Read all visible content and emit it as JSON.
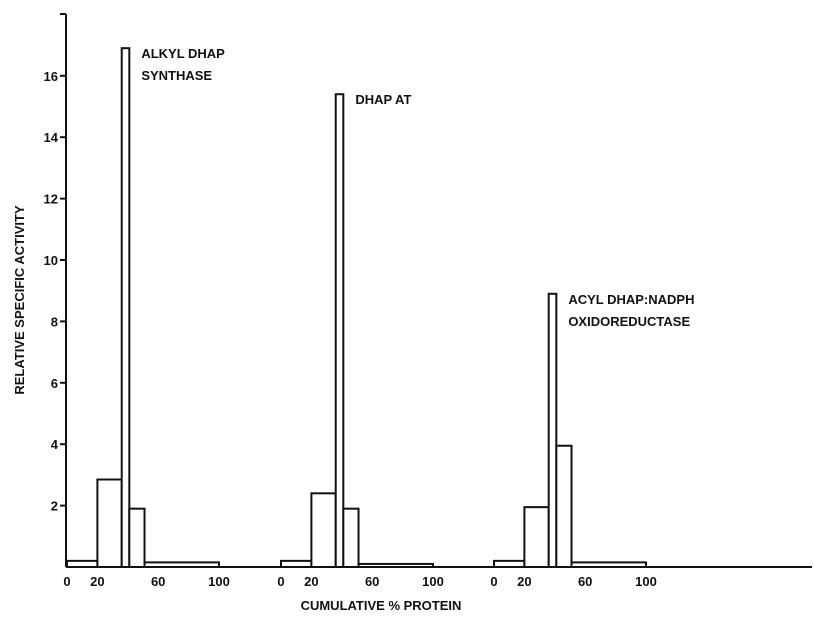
{
  "chart_data": {
    "type": "bar",
    "ylabel": "RELATIVE SPECIFIC ACTIVITY",
    "xlabel": "CUMULATIVE % PROTEIN",
    "yticks": [
      2,
      4,
      6,
      8,
      10,
      12,
      14,
      16
    ],
    "ylim": [
      0,
      18
    ],
    "xlim": [
      0,
      100
    ],
    "x_tick_labels": [
      "0",
      "20",
      "60",
      "100"
    ],
    "x_tick_values": [
      0,
      20,
      60,
      100
    ],
    "panels": [
      {
        "label": [
          "ALKYL DHAP",
          "SYNTHASE"
        ],
        "bars": [
          {
            "x0": 0,
            "x1": 20,
            "value": 0.2
          },
          {
            "x0": 20,
            "x1": 36,
            "value": 2.85
          },
          {
            "x0": 36,
            "x1": 41,
            "value": 16.9
          },
          {
            "x0": 41,
            "x1": 51,
            "value": 1.9
          },
          {
            "x0": 51,
            "x1": 100,
            "value": 0.15
          }
        ]
      },
      {
        "label": [
          "DHAP AT"
        ],
        "bars": [
          {
            "x0": 0,
            "x1": 20,
            "value": 0.2
          },
          {
            "x0": 20,
            "x1": 36,
            "value": 2.4
          },
          {
            "x0": 36,
            "x1": 41,
            "value": 15.4
          },
          {
            "x0": 41,
            "x1": 51,
            "value": 1.9
          },
          {
            "x0": 51,
            "x1": 100,
            "value": 0.1
          }
        ]
      },
      {
        "label": [
          "ACYL DHAP:NADPH",
          "OXIDOREDUCTASE"
        ],
        "bars": [
          {
            "x0": 0,
            "x1": 20,
            "value": 0.2
          },
          {
            "x0": 20,
            "x1": 36,
            "value": 1.95
          },
          {
            "x0": 36,
            "x1": 41,
            "value": 8.9
          },
          {
            "x0": 41,
            "x1": 51,
            "value": 3.95
          },
          {
            "x0": 51,
            "x1": 100,
            "value": 0.15
          }
        ]
      }
    ]
  }
}
